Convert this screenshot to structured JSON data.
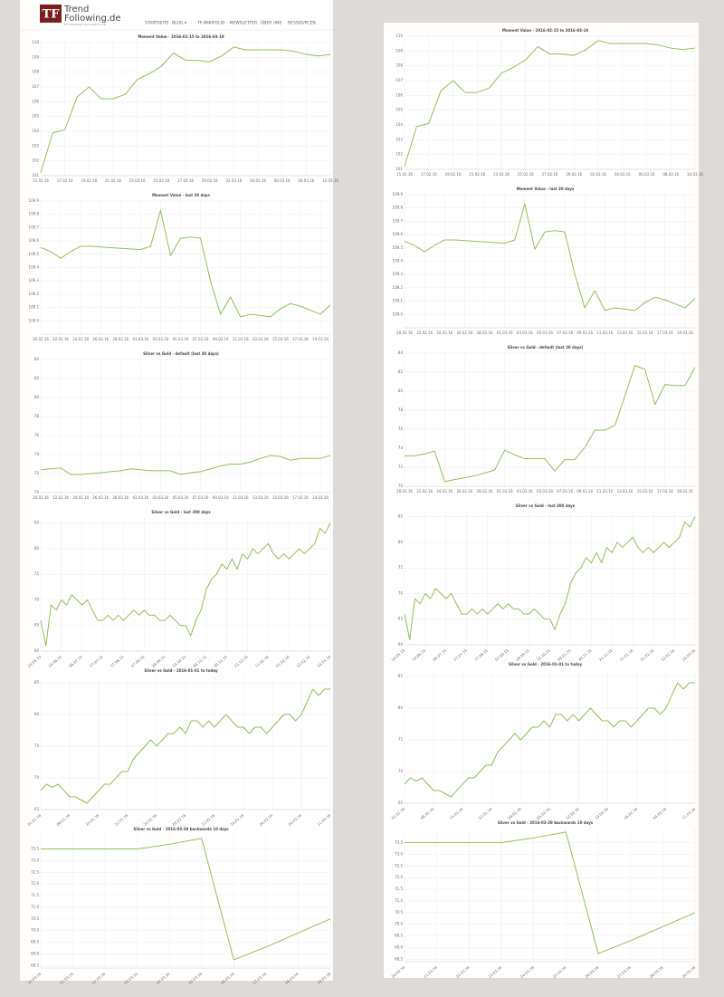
{
  "header": {
    "logo": "TF",
    "brand": [
      "Trend",
      "Following.de"
    ],
    "tagline": "Ein Handwerk ohne Geheimnis",
    "nav": [
      "STARTSEITE",
      "BLOG ▾",
      "TF-WIKIFOLIO",
      "NEWSLETTER",
      "ÜBER UNS",
      "RESSOURCEN"
    ]
  },
  "chart_data": [
    {
      "type": "line",
      "title": "Moment Value - 2016-02-15 to 2016-03-19",
      "color": "#8fbe5a",
      "grid": true,
      "categories": [
        "15.02.16",
        null,
        "17.02.16",
        null,
        "19.02.16",
        null,
        "21.02.16",
        null,
        "23.02.16",
        null,
        "25.02.16",
        null,
        "27.02.16",
        null,
        "29.02.16",
        null,
        "02.03.16",
        null,
        "04.03.16",
        null,
        "06.03.16",
        null,
        "08.03.16",
        null,
        "10.03.16"
      ],
      "values": [
        101.2,
        103.9,
        104.1,
        106.3,
        107.0,
        106.2,
        106.2,
        106.5,
        107.5,
        107.9,
        108.4,
        109.3,
        108.8,
        108.8,
        108.7,
        109.1,
        109.7,
        109.5,
        109.5,
        109.5,
        109.5,
        109.4,
        109.2,
        109.1,
        109.2
      ],
      "ylim": [
        101,
        110
      ],
      "yticks": [
        101,
        102,
        103,
        104,
        105,
        106,
        107,
        108,
        109,
        110
      ]
    },
    {
      "type": "line",
      "title": "Moment Value - last 30 days",
      "color": "#8fbe5a",
      "grid": true,
      "categories": [
        "20.02.16",
        null,
        "22.02.16",
        null,
        "24.02.16",
        null,
        "26.02.16",
        null,
        "28.02.16",
        null,
        "01.03.16",
        null,
        "03.03.16",
        null,
        "05.03.16",
        null,
        "07.03.16",
        null,
        "09.03.16",
        null,
        "11.03.16",
        null,
        "13.03.16",
        null,
        "15.03.16",
        null,
        "17.03.16",
        null,
        "19.03.16",
        null
      ],
      "values": [
        109.55,
        109.52,
        109.47,
        109.52,
        109.56,
        109.56,
        109.555,
        109.55,
        109.545,
        109.54,
        109.535,
        109.56,
        109.83,
        109.49,
        109.62,
        109.63,
        109.62,
        109.3,
        109.05,
        109.18,
        109.03,
        109.05,
        109.04,
        109.03,
        109.09,
        109.13,
        109.11,
        109.08,
        109.05,
        109.12
      ],
      "ylim": [
        108.9,
        109.9
      ],
      "yticks": [
        {
          "value": 109,
          "label": "109.0"
        },
        109.1,
        109.2,
        109.3,
        109.4,
        109.5,
        109.6,
        109.7,
        109.8,
        109.9
      ]
    },
    {
      "type": "line",
      "title": "Silver vs Gold - default (last 30 days)",
      "color": "#8fbe5a",
      "grid": true,
      "categories": [
        "20.02.16",
        null,
        "22.02.16",
        null,
        "24.02.16",
        null,
        "26.02.16",
        null,
        "28.02.16",
        null,
        "01.03.16",
        null,
        "03.03.16",
        null,
        "05.03.16",
        null,
        "07.03.16",
        null,
        "09.03.16",
        null,
        "11.03.16",
        null,
        "13.03.16",
        null,
        "15.03.16",
        null,
        "17.03.16",
        null,
        "19.03.16",
        null
      ],
      "values": [
        72.4,
        72.5,
        72.6,
        71.9,
        71.9,
        72.0,
        72.1,
        72.2,
        72.3,
        72.5,
        72.4,
        72.3,
        72.3,
        72.3,
        71.9,
        72.1,
        72.2,
        72.5,
        72.8,
        73.0,
        73.0,
        73.2,
        73.6,
        73.9,
        73.8,
        73.4,
        73.6,
        73.6,
        73.6,
        73.9
      ],
      "ylim": [
        70,
        84
      ],
      "yticks": [
        70,
        72,
        74,
        76,
        78,
        80,
        82,
        84
      ]
    },
    {
      "type": "line",
      "title": "Silver vs Gold - last 300 days",
      "color": "#8fbe5a",
      "grid": true,
      "categories": [
        "24.05.15",
        null,
        null,
        null,
        "14.06.15",
        null,
        null,
        null,
        "06.07.15",
        null,
        null,
        null,
        "27.07.15",
        null,
        null,
        null,
        "17.08.15",
        null,
        null,
        null,
        "07.09.15",
        null,
        null,
        null,
        "28.09.15",
        null,
        null,
        null,
        "19.10.15",
        null,
        null,
        null,
        "09.11.15",
        null,
        null,
        null,
        "30.11.15",
        null,
        null,
        null,
        "21.12.15",
        null,
        null,
        null,
        "11.01.16",
        null,
        null,
        null,
        "01.02.16",
        null,
        null,
        null,
        "22.02.16",
        null,
        null,
        null,
        "14.03.16"
      ],
      "values": [
        66,
        61,
        69,
        68,
        70,
        69,
        71,
        70,
        69,
        70,
        68,
        66,
        66,
        67,
        66,
        67,
        66,
        67,
        68,
        67,
        68,
        67,
        67,
        66,
        66,
        67,
        66,
        65,
        65,
        63,
        66,
        68,
        72,
        74,
        75,
        77,
        76,
        78,
        76,
        79,
        78,
        80,
        79,
        80,
        81,
        79,
        78,
        79,
        78,
        79,
        80,
        79,
        80,
        81,
        84,
        83,
        85
      ],
      "ylim": [
        60,
        86
      ],
      "yticks": [
        60,
        65,
        70,
        75,
        80,
        85
      ]
    },
    {
      "type": "line",
      "title": "Silver vs Gold - 2016-01-01 to today",
      "color": "#8fbe5a",
      "grid": true,
      "categories": [
        "01.01.16",
        null,
        null,
        null,
        null,
        "08.01.16",
        null,
        null,
        null,
        null,
        "15.01.16",
        null,
        null,
        null,
        null,
        "22.01.16",
        null,
        null,
        null,
        null,
        "29.01.16",
        null,
        null,
        null,
        null,
        "05.02.16",
        null,
        null,
        null,
        null,
        "12.02.16",
        null,
        null,
        null,
        null,
        "19.02.16",
        null,
        null,
        null,
        null,
        "26.02.16",
        null,
        null,
        null,
        null,
        "04.03.16",
        null,
        null,
        null,
        null,
        "11.03.16"
      ],
      "values": [
        68,
        69,
        68.5,
        69,
        68,
        67,
        67,
        66.5,
        66,
        67,
        68,
        69,
        69,
        70,
        71,
        71,
        73,
        74,
        75,
        76,
        75,
        76,
        77,
        77,
        78,
        77,
        79,
        79,
        78,
        79,
        78,
        79,
        80,
        79,
        78,
        78,
        77,
        78,
        78,
        77,
        78,
        79,
        80,
        80,
        79,
        80,
        82,
        84,
        83,
        84,
        84
      ],
      "ylim": [
        65,
        86
      ],
      "yticks": [
        65,
        70,
        75,
        80,
        85
      ]
    },
    {
      "type": "line",
      "title": "Silver vs Gold - 2016-03-29 backwards 10 days",
      "color": "#8fbe5a",
      "grid": true,
      "categories": [
        "20.03.16",
        "21.03.16",
        "22.03.16",
        "23.03.16",
        "24.03.16",
        "25.03.16",
        "26.03.16",
        "27.03.16",
        "28.03.16",
        "29.03.16"
      ],
      "values": [
        73.5,
        73.5,
        73.5,
        73.5,
        73.7,
        73.95,
        68.75,
        69.3,
        69.9,
        70.5
      ],
      "ylim": [
        68.4,
        74.1
      ],
      "yticks": [
        68.5,
        {
          "value": 69,
          "label": "69.0"
        },
        69.5,
        {
          "value": 70,
          "label": "70.0"
        },
        70.5,
        {
          "value": 71,
          "label": "71.0"
        },
        71.5,
        {
          "value": 72,
          "label": "72.0"
        },
        72.5,
        {
          "value": 73,
          "label": "73.0"
        },
        73.5
      ]
    },
    {
      "type": "line",
      "title": "Moment Value - 2016-02-15 to 2016-03-19",
      "color": "#8fbe5a",
      "grid": true,
      "categories": [
        "15.02.16",
        null,
        "17.02.16",
        null,
        "19.02.16",
        null,
        "21.02.16",
        null,
        "23.02.16",
        null,
        "25.02.16",
        null,
        "27.02.16",
        null,
        "29.02.16",
        null,
        "02.03.16",
        null,
        "04.03.16",
        null,
        "06.03.16",
        null,
        "08.03.16",
        null,
        "10.03.16"
      ],
      "values": [
        101.2,
        103.9,
        104.1,
        106.3,
        107.0,
        106.2,
        106.2,
        106.5,
        107.5,
        107.9,
        108.4,
        109.3,
        108.8,
        108.8,
        108.7,
        109.1,
        109.7,
        109.5,
        109.5,
        109.5,
        109.5,
        109.4,
        109.2,
        109.1,
        109.2
      ],
      "ylim": [
        101,
        110
      ],
      "yticks": [
        101,
        102,
        103,
        104,
        105,
        106,
        107,
        108,
        109,
        110
      ]
    },
    {
      "type": "line",
      "title": "Moment Value - last 30 days",
      "color": "#8fbe5a",
      "grid": true,
      "categories": [
        "20.02.16",
        null,
        "22.02.16",
        null,
        "24.02.16",
        null,
        "26.02.16",
        null,
        "28.02.16",
        null,
        "01.03.16",
        null,
        "03.03.16",
        null,
        "05.03.16",
        null,
        "07.03.16",
        null,
        "09.03.16",
        null,
        "11.03.16",
        null,
        "13.03.16",
        null,
        "15.03.16",
        null,
        "17.03.16",
        null,
        "19.03.16",
        null
      ],
      "values": [
        109.55,
        109.52,
        109.47,
        109.52,
        109.56,
        109.56,
        109.555,
        109.55,
        109.545,
        109.54,
        109.535,
        109.56,
        109.83,
        109.49,
        109.62,
        109.63,
        109.62,
        109.3,
        109.05,
        109.18,
        109.03,
        109.05,
        109.04,
        109.03,
        109.09,
        109.13,
        109.11,
        109.08,
        109.05,
        109.12
      ],
      "ylim": [
        108.9,
        109.9
      ],
      "yticks": [
        {
          "value": 109,
          "label": "109.0"
        },
        109.1,
        109.2,
        109.3,
        109.4,
        109.5,
        109.6,
        109.7,
        109.8,
        109.9
      ]
    },
    {
      "type": "line",
      "title": "Silver vs Gold - default (last 30 days)",
      "color": "#8fbe5a",
      "grid": true,
      "categories": [
        "20.02.16",
        null,
        "22.02.16",
        null,
        "24.02.16",
        null,
        "26.02.16",
        null,
        "28.02.16",
        null,
        "01.03.16",
        null,
        "03.03.16",
        null,
        "05.03.16",
        null,
        "07.03.16",
        null,
        "09.03.16",
        null,
        "11.03.16",
        null,
        "13.03.16",
        null,
        "15.03.16",
        null,
        "17.03.16",
        null,
        "19.03.16",
        null
      ],
      "values": [
        73.2,
        73.2,
        73.4,
        73.7,
        70.5,
        70.7,
        70.9,
        71.1,
        71.4,
        71.7,
        73.8,
        73.3,
        72.9,
        72.9,
        72.9,
        71.6,
        72.8,
        72.8,
        74.1,
        75.9,
        75.9,
        76.4,
        79.5,
        82.7,
        82.3,
        78.6,
        80.7,
        80.6,
        80.6,
        82.5
      ],
      "ylim": [
        70,
        84
      ],
      "yticks": [
        70,
        72,
        74,
        76,
        78,
        80,
        82,
        84
      ]
    },
    {
      "type": "line",
      "title": "Silver vs Gold - last 300 days",
      "color": "#8fbe5a",
      "grid": true,
      "categories": [
        "24.05.15",
        null,
        null,
        null,
        "14.06.15",
        null,
        null,
        null,
        "06.07.15",
        null,
        null,
        null,
        "27.07.15",
        null,
        null,
        null,
        "17.08.15",
        null,
        null,
        null,
        "07.09.15",
        null,
        null,
        null,
        "28.09.15",
        null,
        null,
        null,
        "19.10.15",
        null,
        null,
        null,
        "09.11.15",
        null,
        null,
        null,
        "30.11.15",
        null,
        null,
        null,
        "21.12.15",
        null,
        null,
        null,
        "11.01.16",
        null,
        null,
        null,
        "01.02.16",
        null,
        null,
        null,
        "22.02.16",
        null,
        null,
        null,
        "14.03.16"
      ],
      "values": [
        66,
        61,
        69,
        68,
        70,
        69,
        71,
        70,
        69,
        70,
        68,
        66,
        66,
        67,
        66,
        67,
        66,
        67,
        68,
        67,
        68,
        67,
        67,
        66,
        66,
        67,
        66,
        65,
        65,
        63,
        66,
        68,
        72,
        74,
        75,
        77,
        76,
        78,
        76,
        79,
        78,
        80,
        79,
        80,
        81,
        79,
        78,
        79,
        78,
        79,
        80,
        79,
        80,
        81,
        84,
        83,
        85
      ],
      "ylim": [
        60,
        86
      ],
      "yticks": [
        60,
        65,
        70,
        75,
        80,
        85
      ]
    },
    {
      "type": "line",
      "title": "Silver vs Gold - 2016-01-01 to today",
      "color": "#8fbe5a",
      "grid": true,
      "categories": [
        "01.01.16",
        null,
        null,
        null,
        null,
        "08.01.16",
        null,
        null,
        null,
        null,
        "15.01.16",
        null,
        null,
        null,
        null,
        "22.01.16",
        null,
        null,
        null,
        null,
        "29.01.16",
        null,
        null,
        null,
        null,
        "05.02.16",
        null,
        null,
        null,
        null,
        "12.02.16",
        null,
        null,
        null,
        null,
        "19.02.16",
        null,
        null,
        null,
        null,
        "26.02.16",
        null,
        null,
        null,
        null,
        "04.03.16",
        null,
        null,
        null,
        null,
        "11.03.16"
      ],
      "values": [
        68,
        69,
        68.5,
        69,
        68,
        67,
        67,
        66.5,
        66,
        67,
        68,
        69,
        69,
        70,
        71,
        71,
        73,
        74,
        75,
        76,
        75,
        76,
        77,
        77,
        78,
        77,
        79,
        79,
        78,
        79,
        78,
        79,
        80,
        79,
        78,
        78,
        77,
        78,
        78,
        77,
        78,
        79,
        80,
        80,
        79,
        80,
        82,
        84,
        83,
        84,
        84
      ],
      "ylim": [
        65,
        86
      ],
      "yticks": [
        65,
        70,
        75,
        80,
        85
      ]
    },
    {
      "type": "line",
      "title": "Silver vs Gold - 2016-03-29 backwards 10 days",
      "color": "#8fbe5a",
      "grid": true,
      "categories": [
        "20.03.16",
        "21.03.16",
        "22.03.16",
        "23.03.16",
        "24.03.16",
        "25.03.16",
        "26.03.16",
        "27.03.16",
        "28.03.16",
        "29.03.16"
      ],
      "values": [
        73.5,
        73.5,
        73.5,
        73.5,
        73.7,
        73.95,
        68.75,
        69.3,
        69.9,
        70.5
      ],
      "ylim": [
        68.4,
        74.1
      ],
      "yticks": [
        68.5,
        {
          "value": 69,
          "label": "69.0"
        },
        69.5,
        {
          "value": 70,
          "label": "70.0"
        },
        70.5,
        {
          "value": 71,
          "label": "71.0"
        },
        71.5,
        {
          "value": 72,
          "label": "72.0"
        },
        72.5,
        {
          "value": 73,
          "label": "73.0"
        },
        73.5
      ]
    }
  ]
}
